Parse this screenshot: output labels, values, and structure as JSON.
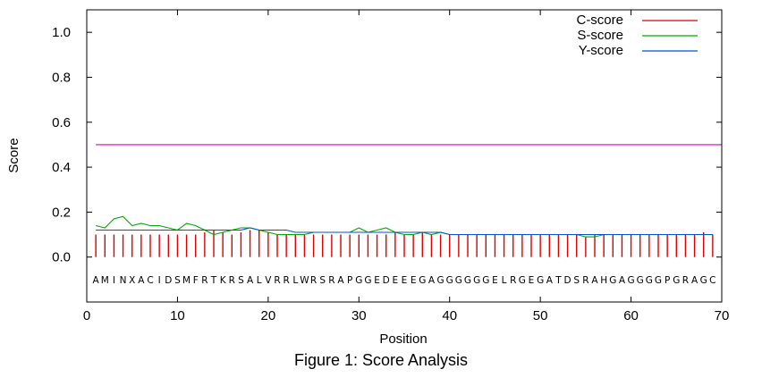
{
  "caption": "Figure 1: Score Analysis",
  "chart_data": {
    "type": "line",
    "xlabel": "Position",
    "ylabel": "Score",
    "xlim": [
      0,
      70
    ],
    "ylim": [
      -0.2,
      1.1
    ],
    "x_ticks": [
      0,
      10,
      20,
      30,
      40,
      50,
      60,
      70
    ],
    "y_ticks": [
      0.0,
      0.2,
      0.4,
      0.6,
      0.8,
      1.0
    ],
    "y_tick_labels": [
      "0.0",
      "0.2",
      "0.4",
      "0.6",
      "0.8",
      "1.0"
    ],
    "legend_position": "top-right",
    "cutoff_line": {
      "y": 0.5,
      "x_range": [
        1,
        70
      ],
      "color": "#cc00cc"
    },
    "sequence": [
      "A",
      "M",
      "I",
      "N",
      "X",
      "A",
      "C",
      "I",
      "D",
      "S",
      "M",
      "F",
      "R",
      "T",
      "K",
      "R",
      "S",
      "A",
      "L",
      "V",
      "R",
      "R",
      "L",
      "W",
      "R",
      "S",
      "R",
      "A",
      "P",
      "G",
      "G",
      "E",
      "D",
      "E",
      "E",
      "E",
      "G",
      "A",
      "G",
      "G",
      "G",
      "G",
      "G",
      "G",
      "E",
      "L",
      "R",
      "G",
      "E",
      "G",
      "A",
      "T",
      "D",
      "S",
      "R",
      "A",
      "H",
      "G",
      "A",
      "G",
      "G",
      "G",
      "G",
      "P",
      "G",
      "R",
      "A",
      "G",
      "C"
    ],
    "sequence_y": -0.1,
    "series": [
      {
        "name": "C-score",
        "style": "impulses",
        "color": "#dd0000",
        "x": [
          1,
          2,
          3,
          4,
          5,
          6,
          7,
          8,
          9,
          10,
          11,
          12,
          13,
          14,
          15,
          16,
          17,
          18,
          19,
          20,
          21,
          22,
          23,
          24,
          25,
          26,
          27,
          28,
          29,
          30,
          31,
          32,
          33,
          34,
          35,
          36,
          37,
          38,
          39,
          40,
          41,
          42,
          43,
          44,
          45,
          46,
          47,
          48,
          49,
          50,
          51,
          52,
          53,
          54,
          55,
          56,
          57,
          58,
          59,
          60,
          61,
          62,
          63,
          64,
          65,
          66,
          67,
          68,
          69
        ],
        "values": [
          0.1,
          0.1,
          0.1,
          0.1,
          0.1,
          0.1,
          0.1,
          0.1,
          0.1,
          0.1,
          0.1,
          0.1,
          0.11,
          0.12,
          0.11,
          0.1,
          0.11,
          0.12,
          0.12,
          0.11,
          0.1,
          0.1,
          0.1,
          0.1,
          0.1,
          0.1,
          0.1,
          0.1,
          0.1,
          0.1,
          0.1,
          0.1,
          0.1,
          0.11,
          0.1,
          0.1,
          0.11,
          0.1,
          0.1,
          0.1,
          0.1,
          0.1,
          0.1,
          0.1,
          0.1,
          0.1,
          0.1,
          0.1,
          0.1,
          0.1,
          0.1,
          0.1,
          0.1,
          0.1,
          0.09,
          0.1,
          0.1,
          0.1,
          0.1,
          0.1,
          0.1,
          0.1,
          0.1,
          0.1,
          0.1,
          0.1,
          0.1,
          0.11,
          0.1
        ]
      },
      {
        "name": "S-score",
        "style": "line",
        "color": "#00aa00",
        "x": [
          1,
          2,
          3,
          4,
          5,
          6,
          7,
          8,
          9,
          10,
          11,
          12,
          13,
          14,
          15,
          16,
          17,
          18,
          19,
          20,
          21,
          22,
          23,
          24,
          25,
          26,
          27,
          28,
          29,
          30,
          31,
          32,
          33,
          34,
          35,
          36,
          37,
          38,
          39,
          40,
          41,
          42,
          43,
          44,
          45,
          46,
          47,
          48,
          49,
          50,
          51,
          52,
          53,
          54,
          55,
          56,
          57,
          58,
          59,
          60,
          61,
          62,
          63,
          64,
          65,
          66,
          67,
          68,
          69
        ],
        "values": [
          0.14,
          0.13,
          0.17,
          0.18,
          0.14,
          0.15,
          0.14,
          0.14,
          0.13,
          0.12,
          0.15,
          0.14,
          0.12,
          0.1,
          0.11,
          0.12,
          0.13,
          0.13,
          0.12,
          0.11,
          0.1,
          0.1,
          0.1,
          0.1,
          0.11,
          0.11,
          0.11,
          0.11,
          0.11,
          0.13,
          0.11,
          0.12,
          0.13,
          0.11,
          0.1,
          0.1,
          0.11,
          0.1,
          0.11,
          0.1,
          0.1,
          0.1,
          0.1,
          0.1,
          0.1,
          0.1,
          0.1,
          0.1,
          0.1,
          0.1,
          0.1,
          0.1,
          0.1,
          0.1,
          0.09,
          0.09,
          0.1,
          0.1,
          0.1,
          0.1,
          0.1,
          0.1,
          0.1,
          0.1,
          0.1,
          0.1,
          0.1,
          0.1,
          0.1
        ]
      },
      {
        "name": "Y-score",
        "style": "line",
        "color": "#0055cc",
        "x": [
          1,
          2,
          3,
          4,
          5,
          6,
          7,
          8,
          9,
          10,
          11,
          12,
          13,
          14,
          15,
          16,
          17,
          18,
          19,
          20,
          21,
          22,
          23,
          24,
          25,
          26,
          27,
          28,
          29,
          30,
          31,
          32,
          33,
          34,
          35,
          36,
          37,
          38,
          39,
          40,
          41,
          42,
          43,
          44,
          45,
          46,
          47,
          48,
          49,
          50,
          51,
          52,
          53,
          54,
          55,
          56,
          57,
          58,
          59,
          60,
          61,
          62,
          63,
          64,
          65,
          66,
          67,
          68,
          69
        ],
        "values": [
          0.12,
          0.12,
          0.12,
          0.12,
          0.12,
          0.12,
          0.12,
          0.12,
          0.12,
          0.12,
          0.12,
          0.12,
          0.12,
          0.12,
          0.12,
          0.12,
          0.12,
          0.13,
          0.12,
          0.12,
          0.12,
          0.12,
          0.11,
          0.11,
          0.11,
          0.11,
          0.11,
          0.11,
          0.11,
          0.11,
          0.11,
          0.11,
          0.11,
          0.11,
          0.11,
          0.11,
          0.11,
          0.11,
          0.11,
          0.1,
          0.1,
          0.1,
          0.1,
          0.1,
          0.1,
          0.1,
          0.1,
          0.1,
          0.1,
          0.1,
          0.1,
          0.1,
          0.1,
          0.1,
          0.1,
          0.1,
          0.1,
          0.1,
          0.1,
          0.1,
          0.1,
          0.1,
          0.1,
          0.1,
          0.1,
          0.1,
          0.1,
          0.1,
          0.1
        ]
      }
    ]
  }
}
